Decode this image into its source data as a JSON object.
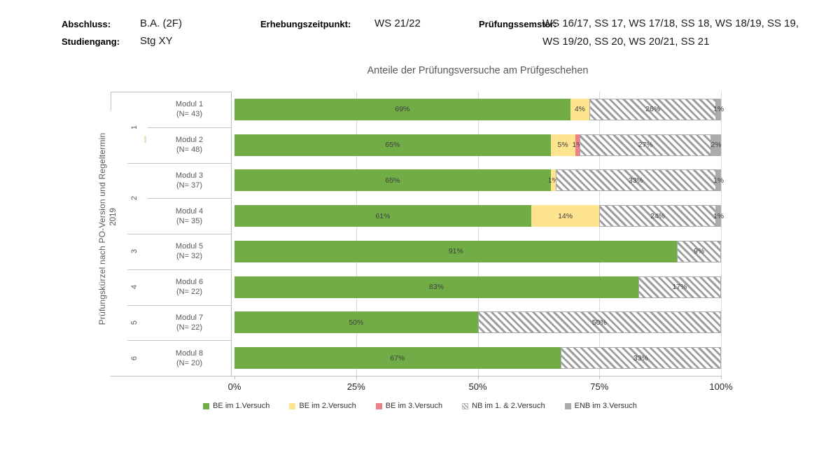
{
  "header": {
    "abschluss_label": "Abschluss:",
    "abschluss_value": "B.A. (2F)",
    "studiengang_label": "Studiengang:",
    "studiengang_value": "Stg XY",
    "erhebung_label": "Erhebungszeitpunkt:",
    "erhebung_value": "WS 21/22",
    "semester_label": "Prüfungssemster:",
    "semester_value_line1": "WS 16/17, SS 17, WS 17/18, SS 18, WS 18/19, SS 19,",
    "semester_value_line2": "WS 19/20, SS 20, WS 20/21, SS 21"
  },
  "chart_data": {
    "type": "bar",
    "orientation": "horizontal",
    "stacked": true,
    "title": "Anteile der Prüfungsversuche am Prüfgeschehen",
    "y_axis_title": "Prüfungskürzel  nach  PO-Version und Regeltermin",
    "y_axis_subtitle": "2019",
    "xlabel": "",
    "xlim": [
      0,
      100
    ],
    "x_ticks": [
      "0%",
      "25%",
      "50%",
      "75%",
      "100%"
    ],
    "grid": "vertical",
    "legend_position": "bottom",
    "gridline_color": "#D9D9D9",
    "axis_color": "#BFBFBF",
    "separator_color": "#C6C6C6",
    "hatch_color": "#9E9E9E",
    "label_color": "#3F3F3F",
    "series": [
      {
        "name": "BE im 1.Versuch",
        "color": "#70AD47",
        "style": "solid"
      },
      {
        "name": "BE im 2.Versuch",
        "color": "#FFE48F",
        "style": "solid"
      },
      {
        "name": "BE im 3.Versuch",
        "color": "#F08088",
        "style": "solid"
      },
      {
        "name": "NB im 1. & 2.Versuch",
        "color": "#FFFFFF",
        "style": "hatch"
      },
      {
        "name": "ENB im 3.Versuch",
        "color": "#ABABAB",
        "style": "solid"
      }
    ],
    "groups": [
      {
        "label": "1",
        "count": 2
      },
      {
        "label": "2",
        "count": 2
      },
      {
        "label": "3",
        "count": 1
      },
      {
        "label": "4",
        "count": 1
      },
      {
        "label": "5",
        "count": 1
      },
      {
        "label": "6",
        "count": 1
      }
    ],
    "rows": [
      {
        "module": "Modul 1",
        "n": "(N= 43)",
        "values": [
          69,
          4,
          0,
          26,
          1
        ]
      },
      {
        "module": "Modul 2",
        "n": "(N= 48)",
        "values": [
          65,
          5,
          1,
          27,
          2
        ]
      },
      {
        "module": "Modul 3",
        "n": "(N= 37)",
        "values": [
          65,
          1,
          0,
          33,
          1
        ]
      },
      {
        "module": "Modul 4",
        "n": "(N= 35)",
        "values": [
          61,
          14,
          0,
          24,
          1
        ]
      },
      {
        "module": "Modul 5",
        "n": "(N= 32)",
        "values": [
          91,
          0,
          0,
          9,
          0
        ]
      },
      {
        "module": "Modul 6",
        "n": "(N= 22)",
        "values": [
          83,
          0,
          0,
          17,
          0
        ]
      },
      {
        "module": "Modul 7",
        "n": "(N= 22)",
        "values": [
          50,
          0,
          0,
          50,
          0
        ]
      },
      {
        "module": "Modul 8",
        "n": "(N= 20)",
        "values": [
          67,
          0,
          0,
          33,
          0
        ]
      }
    ]
  }
}
